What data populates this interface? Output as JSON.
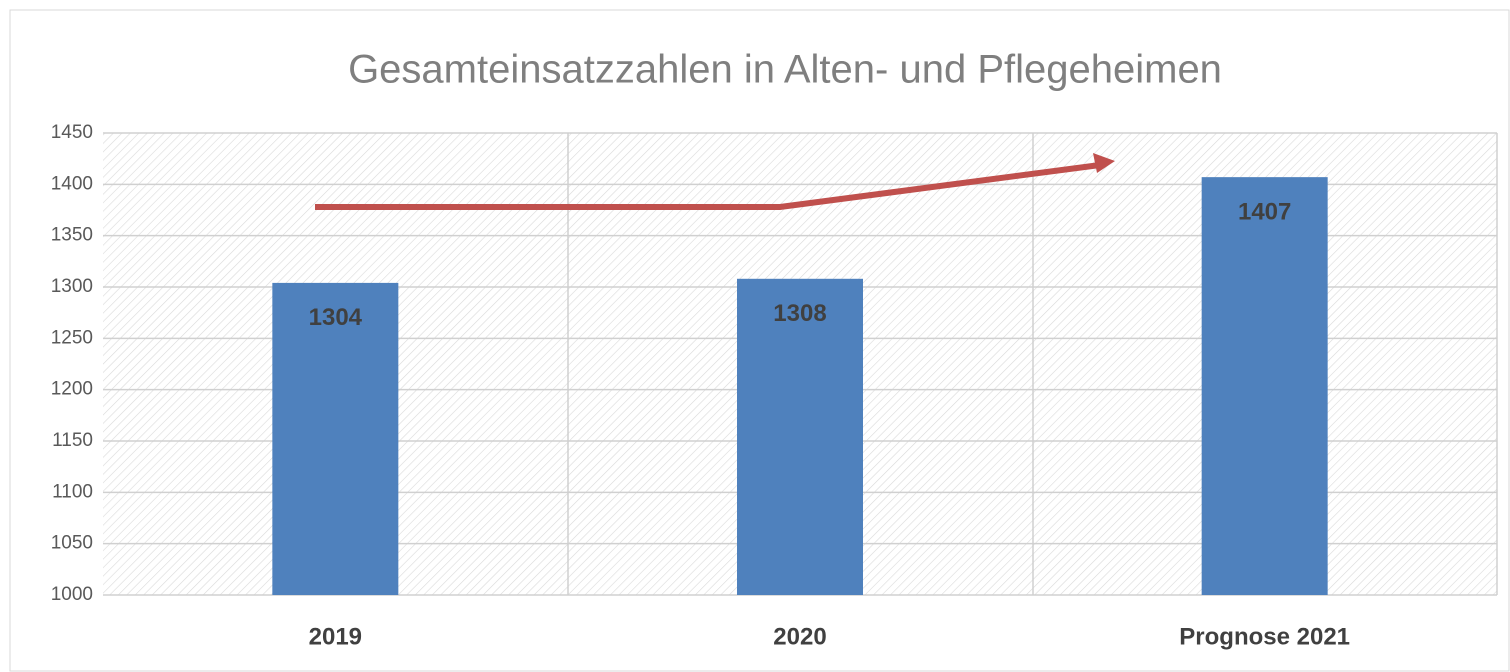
{
  "chart_data": {
    "type": "bar",
    "title": "Gesamteinsatzzahlen in Alten- und Pflegeheimen",
    "categories": [
      "2019",
      "2020",
      "Prognose 2021"
    ],
    "values": [
      1304,
      1308,
      1407
    ],
    "color": "#4f81bd",
    "ylim": [
      1000,
      1450
    ],
    "yticks": [
      1000,
      1050,
      1100,
      1150,
      1200,
      1250,
      1300,
      1350,
      1400,
      1450
    ],
    "grid": true
  }
}
